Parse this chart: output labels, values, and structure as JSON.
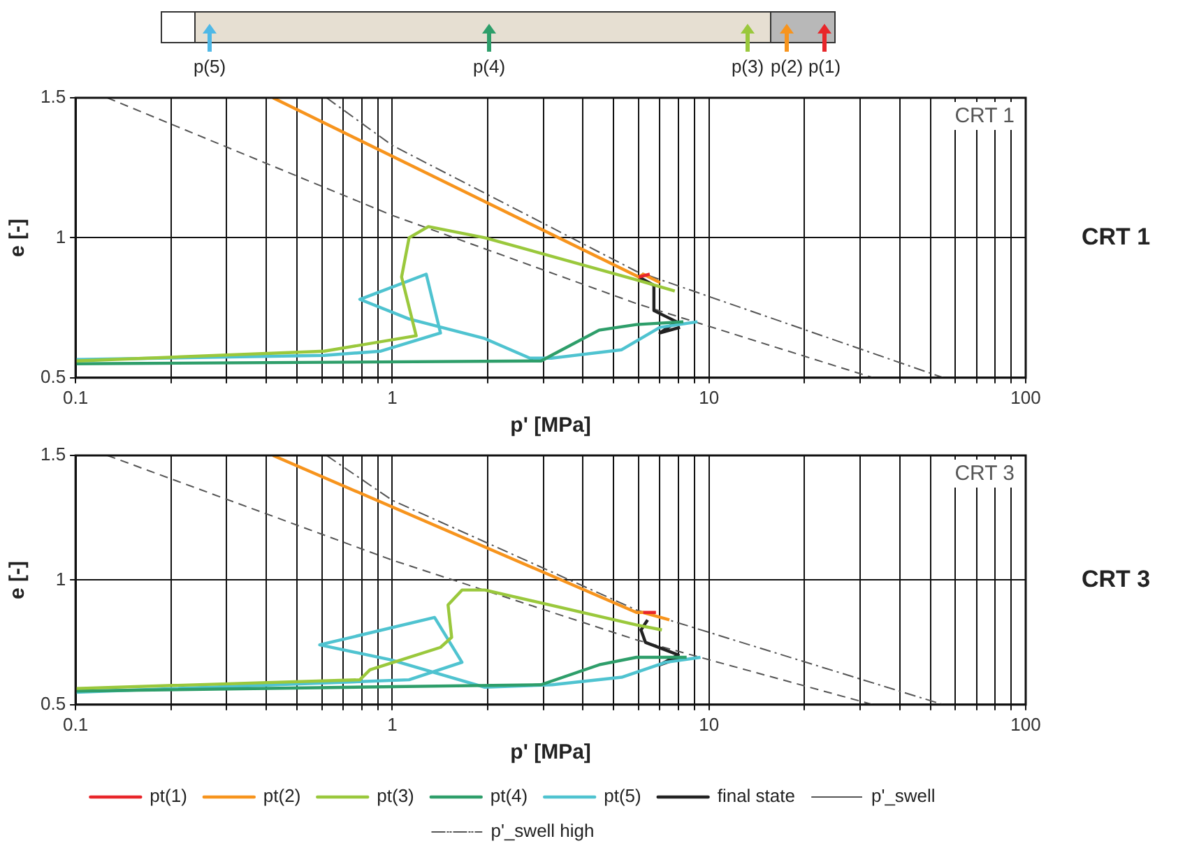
{
  "chart_data": [
    {
      "type": "other",
      "annotations": [
        "p(5)",
        "p(4)",
        "p(3)",
        "p(2)",
        "p(1)"
      ],
      "colors": [
        "#4fb8e6",
        "#2e9e6a",
        "#9ac83c",
        "#f7941d",
        "#e8262a"
      ]
    },
    {
      "type": "line",
      "xlabel": "p' [MPa]",
      "ylabel": "e [-]",
      "log": "x",
      "xlim": [
        0.1,
        100
      ],
      "ylim": [
        0.5,
        1.5
      ],
      "grid": true,
      "legend": false,
      "marker": "none",
      "xticks": [
        0.1,
        {
          "value": 0.2,
          "label": null
        },
        {
          "value": 0.3,
          "label": null
        },
        {
          "value": 0.4,
          "label": null
        },
        {
          "value": 0.5,
          "label": null
        },
        {
          "value": 0.6,
          "label": null
        },
        {
          "value": 0.7,
          "label": null
        },
        {
          "value": 0.8,
          "label": null
        },
        {
          "value": 0.9,
          "label": null
        },
        1,
        {
          "value": 2,
          "label": null
        },
        {
          "value": 3,
          "label": null
        },
        {
          "value": 4,
          "label": null
        },
        {
          "value": 5,
          "label": null
        },
        {
          "value": 6,
          "label": null
        },
        {
          "value": 7,
          "label": null
        },
        {
          "value": 8,
          "label": null
        },
        {
          "value": 9,
          "label": null
        },
        10,
        {
          "value": 20,
          "label": null
        },
        {
          "value": 30,
          "label": null
        },
        {
          "value": 40,
          "label": null
        },
        {
          "value": 50,
          "label": null
        },
        {
          "value": 60,
          "label": null
        },
        {
          "value": 70,
          "label": null
        },
        {
          "value": 80,
          "label": null
        },
        {
          "value": 90,
          "label": null
        },
        100
      ],
      "yticks": [
        0.5,
        1,
        1.5
      ],
      "annotations": [
        "CRT 1",
        "CRT 1"
      ],
      "series": [
        {
          "color": "#e8262a",
          "line_style": "solid",
          "x": [
            6.0,
            6.5
          ],
          "values": [
            0.86,
            0.87
          ]
        },
        {
          "color": "#f7941d",
          "line_style": "solid",
          "x": [
            0.42,
            6.0,
            6.2,
            7.0
          ],
          "values": [
            1.5,
            0.86,
            0.87,
            0.84
          ]
        },
        {
          "color": "#9ac83c",
          "line_style": "solid",
          "x": [
            0.1,
            0.61,
            1.19,
            1.07,
            1.13,
            1.3,
            1.96,
            5.9,
            7.8
          ],
          "values": [
            0.56,
            0.595,
            0.65,
            0.86,
            1.0,
            1.04,
            1.0,
            0.85,
            0.81
          ]
        },
        {
          "color": "#2e9e6a",
          "line_style": "solid",
          "x": [
            0.1,
            2.95,
            3.18,
            4.5,
            5.9,
            8.3
          ],
          "values": [
            0.55,
            0.56,
            0.58,
            0.67,
            0.69,
            0.7
          ]
        },
        {
          "color": "#4fc3d0",
          "line_style": "solid",
          "x": [
            0.1,
            0.61,
            0.92,
            1.42,
            1.28,
            0.79,
            1.13,
            1.96,
            2.72,
            3.18,
            5.3,
            7.0,
            9.2
          ],
          "values": [
            0.565,
            0.58,
            0.595,
            0.66,
            0.87,
            0.78,
            0.71,
            0.64,
            0.57,
            0.57,
            0.6,
            0.68,
            0.7
          ]
        },
        {
          "color": "#222222",
          "line_style": "solid",
          "x": [
            6.0,
            6.7,
            6.7,
            7.9,
            7.0,
            8.1
          ],
          "values": [
            0.86,
            0.83,
            0.74,
            0.7,
            0.66,
            0.68
          ]
        },
        {
          "color": "#555555",
          "line_style": "dashed",
          "x": [
            0.126,
            1,
            5.9,
            33
          ],
          "values": [
            1.5,
            1.08,
            0.765,
            0.5
          ]
        },
        {
          "color": "#555555",
          "line_style": "dotted",
          "x": [
            0.62,
            1,
            5.9,
            55
          ],
          "values": [
            1.5,
            1.33,
            0.88,
            0.5
          ]
        }
      ]
    },
    {
      "type": "line",
      "xlabel": "p' [MPa]",
      "ylabel": "e [-]",
      "log": "x",
      "xlim": [
        0.1,
        100
      ],
      "ylim": [
        0.5,
        1.5
      ],
      "grid": true,
      "legend": "bottom",
      "marker": "none",
      "xticks": [
        0.1,
        {
          "value": 0.2,
          "label": null
        },
        {
          "value": 0.3,
          "label": null
        },
        {
          "value": 0.4,
          "label": null
        },
        {
          "value": 0.5,
          "label": null
        },
        {
          "value": 0.6,
          "label": null
        },
        {
          "value": 0.7,
          "label": null
        },
        {
          "value": 0.8,
          "label": null
        },
        {
          "value": 0.9,
          "label": null
        },
        1,
        {
          "value": 2,
          "label": null
        },
        {
          "value": 3,
          "label": null
        },
        {
          "value": 4,
          "label": null
        },
        {
          "value": 5,
          "label": null
        },
        {
          "value": 6,
          "label": null
        },
        {
          "value": 7,
          "label": null
        },
        {
          "value": 8,
          "label": null
        },
        {
          "value": 9,
          "label": null
        },
        10,
        {
          "value": 20,
          "label": null
        },
        {
          "value": 30,
          "label": null
        },
        {
          "value": 40,
          "label": null
        },
        {
          "value": 50,
          "label": null
        },
        {
          "value": 60,
          "label": null
        },
        {
          "value": 70,
          "label": null
        },
        {
          "value": 80,
          "label": null
        },
        {
          "value": 90,
          "label": null
        },
        100
      ],
      "yticks": [
        0.5,
        1,
        1.5
      ],
      "annotations": [
        "CRT 3",
        "CRT 3"
      ],
      "series": [
        {
          "name": "pt(1)",
          "color": "#e8262a",
          "line_style": "solid",
          "x": [
            6.2,
            6.8
          ],
          "values": [
            0.87,
            0.87
          ]
        },
        {
          "name": "pt(2)",
          "color": "#f7941d",
          "line_style": "solid",
          "x": [
            0.42,
            5.9,
            6.2,
            7.5
          ],
          "values": [
            1.5,
            0.87,
            0.87,
            0.84
          ]
        },
        {
          "name": "pt(3)",
          "color": "#9ac83c",
          "line_style": "solid",
          "x": [
            0.1,
            0.79,
            0.85,
            1.42,
            1.54,
            1.5,
            1.66,
            1.96,
            5.9,
            7.1
          ],
          "values": [
            0.565,
            0.6,
            0.64,
            0.73,
            0.77,
            0.9,
            0.96,
            0.96,
            0.82,
            0.8
          ]
        },
        {
          "name": "pt(4)",
          "color": "#2e9e6a",
          "line_style": "solid",
          "x": [
            0.1,
            2.95,
            4.5,
            5.9,
            8.5
          ],
          "values": [
            0.555,
            0.58,
            0.66,
            0.69,
            0.69
          ]
        },
        {
          "name": "pt(5)",
          "color": "#4fc3d0",
          "line_style": "solid",
          "x": [
            0.1,
            1.13,
            1.66,
            1.36,
            0.59,
            0.99,
            1.96,
            3.2,
            5.3,
            7.3,
            9.4
          ],
          "values": [
            0.55,
            0.6,
            0.67,
            0.85,
            0.74,
            0.68,
            0.57,
            0.58,
            0.61,
            0.67,
            0.69
          ]
        },
        {
          "name": "final state",
          "color": "#222222",
          "line_style": "solid",
          "x": [
            6.4,
            6.1,
            6.3,
            8.0,
            7.0,
            8.2
          ],
          "values": [
            0.84,
            0.8,
            0.75,
            0.7,
            0.66,
            0.69
          ]
        },
        {
          "name": "p'_swell",
          "color": "#555555",
          "line_style": "dashed",
          "x": [
            0.126,
            1,
            5.9,
            33
          ],
          "values": [
            1.5,
            1.08,
            0.76,
            0.5
          ]
        },
        {
          "name": "p'_swell high",
          "color": "#555555",
          "line_style": "dotted",
          "x": [
            0.62,
            1,
            5.9,
            55
          ],
          "values": [
            1.5,
            1.32,
            0.88,
            0.5
          ]
        }
      ]
    }
  ]
}
